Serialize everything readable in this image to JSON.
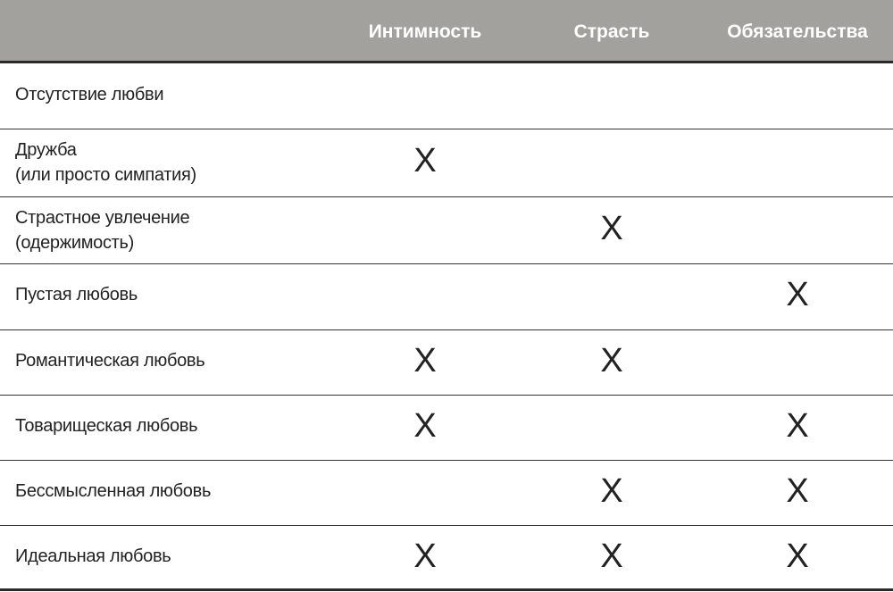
{
  "table": {
    "header": [
      null,
      "Интимность",
      "Страсть",
      "Обязательства"
    ],
    "rows": [
      {
        "label": "Отсутствие любви",
        "cells": [
          null,
          null,
          null
        ]
      },
      {
        "label": "Дружба\n(или просто симпатия)",
        "cells": [
          "X",
          null,
          null
        ]
      },
      {
        "label": "Страстное увлечение\n(одержимость)",
        "cells": [
          null,
          "X",
          null
        ]
      },
      {
        "label": "Пустая любовь",
        "cells": [
          null,
          null,
          "X"
        ]
      },
      {
        "label": "Романтическая любовь",
        "cells": [
          "X",
          "X",
          null
        ]
      },
      {
        "label": "Товарищеская любовь",
        "cells": [
          "X",
          null,
          "X"
        ]
      },
      {
        "label": "Бессмысленная любовь",
        "cells": [
          null,
          "X",
          "X"
        ]
      },
      {
        "label": "Идеальная любовь",
        "cells": [
          "X",
          "X",
          "X"
        ]
      }
    ]
  }
}
